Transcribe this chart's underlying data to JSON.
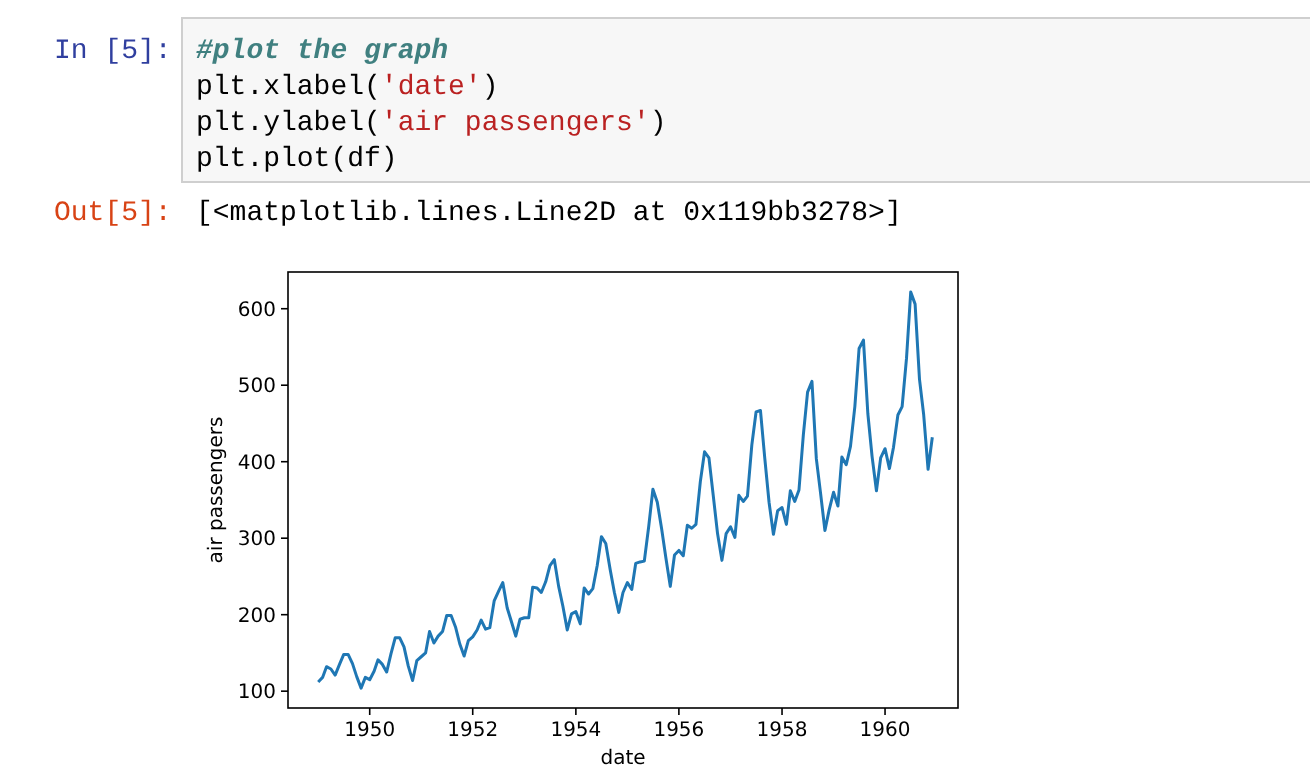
{
  "chart_data": {
    "type": "line",
    "xlabel": "date",
    "ylabel": "air passengers",
    "annotations": [
      "In [5]:",
      "#plot the graph",
      "plt.xlabel('date')",
      "plt.ylabel('air passengers')",
      "plt.plot(df)",
      "Out[5]:",
      "[<matplotlib.lines.Line2D at 0x119bb3278>]"
    ],
    "x": [
      "1949-01",
      "1949-02",
      "1949-03",
      "1949-04",
      "1949-05",
      "1949-06",
      "1949-07",
      "1949-08",
      "1949-09",
      "1949-10",
      "1949-11",
      "1949-12",
      "1950-01",
      "1950-02",
      "1950-03",
      "1950-04",
      "1950-05",
      "1950-06",
      "1950-07",
      "1950-08",
      "1950-09",
      "1950-10",
      "1950-11",
      "1950-12",
      "1951-01",
      "1951-02",
      "1951-03",
      "1951-04",
      "1951-05",
      "1951-06",
      "1951-07",
      "1951-08",
      "1951-09",
      "1951-10",
      "1951-11",
      "1951-12",
      "1952-01",
      "1952-02",
      "1952-03",
      "1952-04",
      "1952-05",
      "1952-06",
      "1952-07",
      "1952-08",
      "1952-09",
      "1952-10",
      "1952-11",
      "1952-12",
      "1953-01",
      "1953-02",
      "1953-03",
      "1953-04",
      "1953-05",
      "1953-06",
      "1953-07",
      "1953-08",
      "1953-09",
      "1953-10",
      "1953-11",
      "1953-12",
      "1954-01",
      "1954-02",
      "1954-03",
      "1954-04",
      "1954-05",
      "1954-06",
      "1954-07",
      "1954-08",
      "1954-09",
      "1954-10",
      "1954-11",
      "1954-12",
      "1955-01",
      "1955-02",
      "1955-03",
      "1955-04",
      "1955-05",
      "1955-06",
      "1955-07",
      "1955-08",
      "1955-09",
      "1955-10",
      "1955-11",
      "1955-12",
      "1956-01",
      "1956-02",
      "1956-03",
      "1956-04",
      "1956-05",
      "1956-06",
      "1956-07",
      "1956-08",
      "1956-09",
      "1956-10",
      "1956-11",
      "1956-12",
      "1957-01",
      "1957-02",
      "1957-03",
      "1957-04",
      "1957-05",
      "1957-06",
      "1957-07",
      "1957-08",
      "1957-09",
      "1957-10",
      "1957-11",
      "1957-12",
      "1958-01",
      "1958-02",
      "1958-03",
      "1958-04",
      "1958-05",
      "1958-06",
      "1958-07",
      "1958-08",
      "1958-09",
      "1958-10",
      "1958-11",
      "1958-12",
      "1959-01",
      "1959-02",
      "1959-03",
      "1959-04",
      "1959-05",
      "1959-06",
      "1959-07",
      "1959-08",
      "1959-09",
      "1959-10",
      "1959-11",
      "1959-12",
      "1960-01",
      "1960-02",
      "1960-03",
      "1960-04",
      "1960-05",
      "1960-06",
      "1960-07",
      "1960-08",
      "1960-09",
      "1960-10",
      "1960-11",
      "1960-12"
    ],
    "series": [
      {
        "color": "#1f77b4",
        "values": [
          112,
          118,
          132,
          129,
          121,
          135,
          148,
          148,
          136,
          119,
          104,
          118,
          115,
          126,
          141,
          135,
          125,
          149,
          170,
          170,
          158,
          133,
          114,
          140,
          145,
          150,
          178,
          163,
          172,
          178,
          199,
          199,
          184,
          162,
          146,
          166,
          171,
          180,
          193,
          181,
          183,
          218,
          230,
          242,
          209,
          191,
          172,
          194,
          196,
          196,
          236,
          235,
          229,
          243,
          264,
          272,
          237,
          211,
          180,
          201,
          204,
          188,
          235,
          227,
          234,
          264,
          302,
          293,
          259,
          229,
          203,
          229,
          242,
          233,
          267,
          269,
          270,
          315,
          364,
          347,
          312,
          274,
          237,
          278,
          284,
          277,
          317,
          313,
          318,
          374,
          413,
          405,
          355,
          306,
          271,
          306,
          315,
          301,
          356,
          348,
          355,
          422,
          465,
          467,
          404,
          347,
          305,
          336,
          340,
          318,
          362,
          348,
          363,
          435,
          491,
          505,
          404,
          359,
          310,
          337,
          360,
          342,
          406,
          396,
          420,
          472,
          548,
          559,
          463,
          407,
          362,
          405,
          417,
          391,
          419,
          461,
          472,
          535,
          622,
          606,
          508,
          461,
          390,
          432
        ]
      }
    ],
    "xlim": [
      "1948-06",
      "1961-06"
    ],
    "xticks": [
      {
        "value": "1950",
        "label": "1950"
      },
      {
        "value": "1952",
        "label": "1952"
      },
      {
        "value": "1954",
        "label": "1954"
      },
      {
        "value": "1956",
        "label": "1956"
      },
      {
        "value": "1958",
        "label": "1958"
      },
      {
        "value": "1960",
        "label": "1960"
      }
    ],
    "ylim": [
      78,
      648
    ],
    "yticks": [
      100,
      200,
      300,
      400,
      500,
      600
    ],
    "grid": false,
    "marker": "none",
    "line_style": "solid"
  }
}
